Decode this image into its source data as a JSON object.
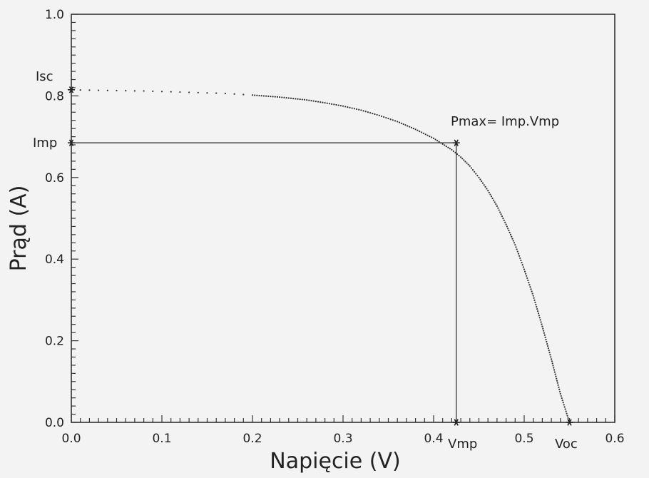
{
  "chart_data": {
    "type": "line",
    "xlabel": "Napięcie (V)",
    "ylabel": "Prąd (A)",
    "xlim": [
      0,
      0.6
    ],
    "ylim": [
      0,
      1.0
    ],
    "x_ticks": [
      "0.0",
      "0.1",
      "0.2",
      "0.3",
      "0.4",
      "0.5",
      "0.6"
    ],
    "y_ticks": [
      "0.0",
      "0.2",
      "0.4",
      "0.6",
      "0.8",
      "1.0"
    ],
    "grid": false,
    "series": [
      {
        "x": [
          0.0,
          0.02,
          0.05,
          0.08,
          0.11,
          0.14,
          0.17,
          0.2,
          0.23,
          0.26,
          0.28,
          0.3,
          0.32,
          0.34,
          0.36,
          0.38,
          0.4,
          0.41,
          0.42,
          0.43,
          0.44,
          0.45,
          0.46,
          0.47,
          0.48,
          0.49,
          0.5,
          0.51,
          0.52,
          0.53,
          0.54,
          0.55
        ],
        "y": [
          0.815,
          0.814,
          0.813,
          0.812,
          0.81,
          0.808,
          0.806,
          0.802,
          0.797,
          0.79,
          0.783,
          0.775,
          0.765,
          0.752,
          0.737,
          0.718,
          0.696,
          0.682,
          0.668,
          0.65,
          0.628,
          0.6,
          0.568,
          0.53,
          0.485,
          0.435,
          0.375,
          0.31,
          0.235,
          0.155,
          0.07,
          0.0
        ]
      }
    ],
    "annotations": {
      "isc": {
        "label": "Isc",
        "value": 0.815
      },
      "imp": {
        "label": "Imp",
        "value": 0.685
      },
      "vmp": {
        "label": "Vmp",
        "value": 0.425
      },
      "voc": {
        "label": "Voc",
        "value": 0.55
      },
      "pmax_label": "Pmax=  Imp.Vmp"
    }
  }
}
